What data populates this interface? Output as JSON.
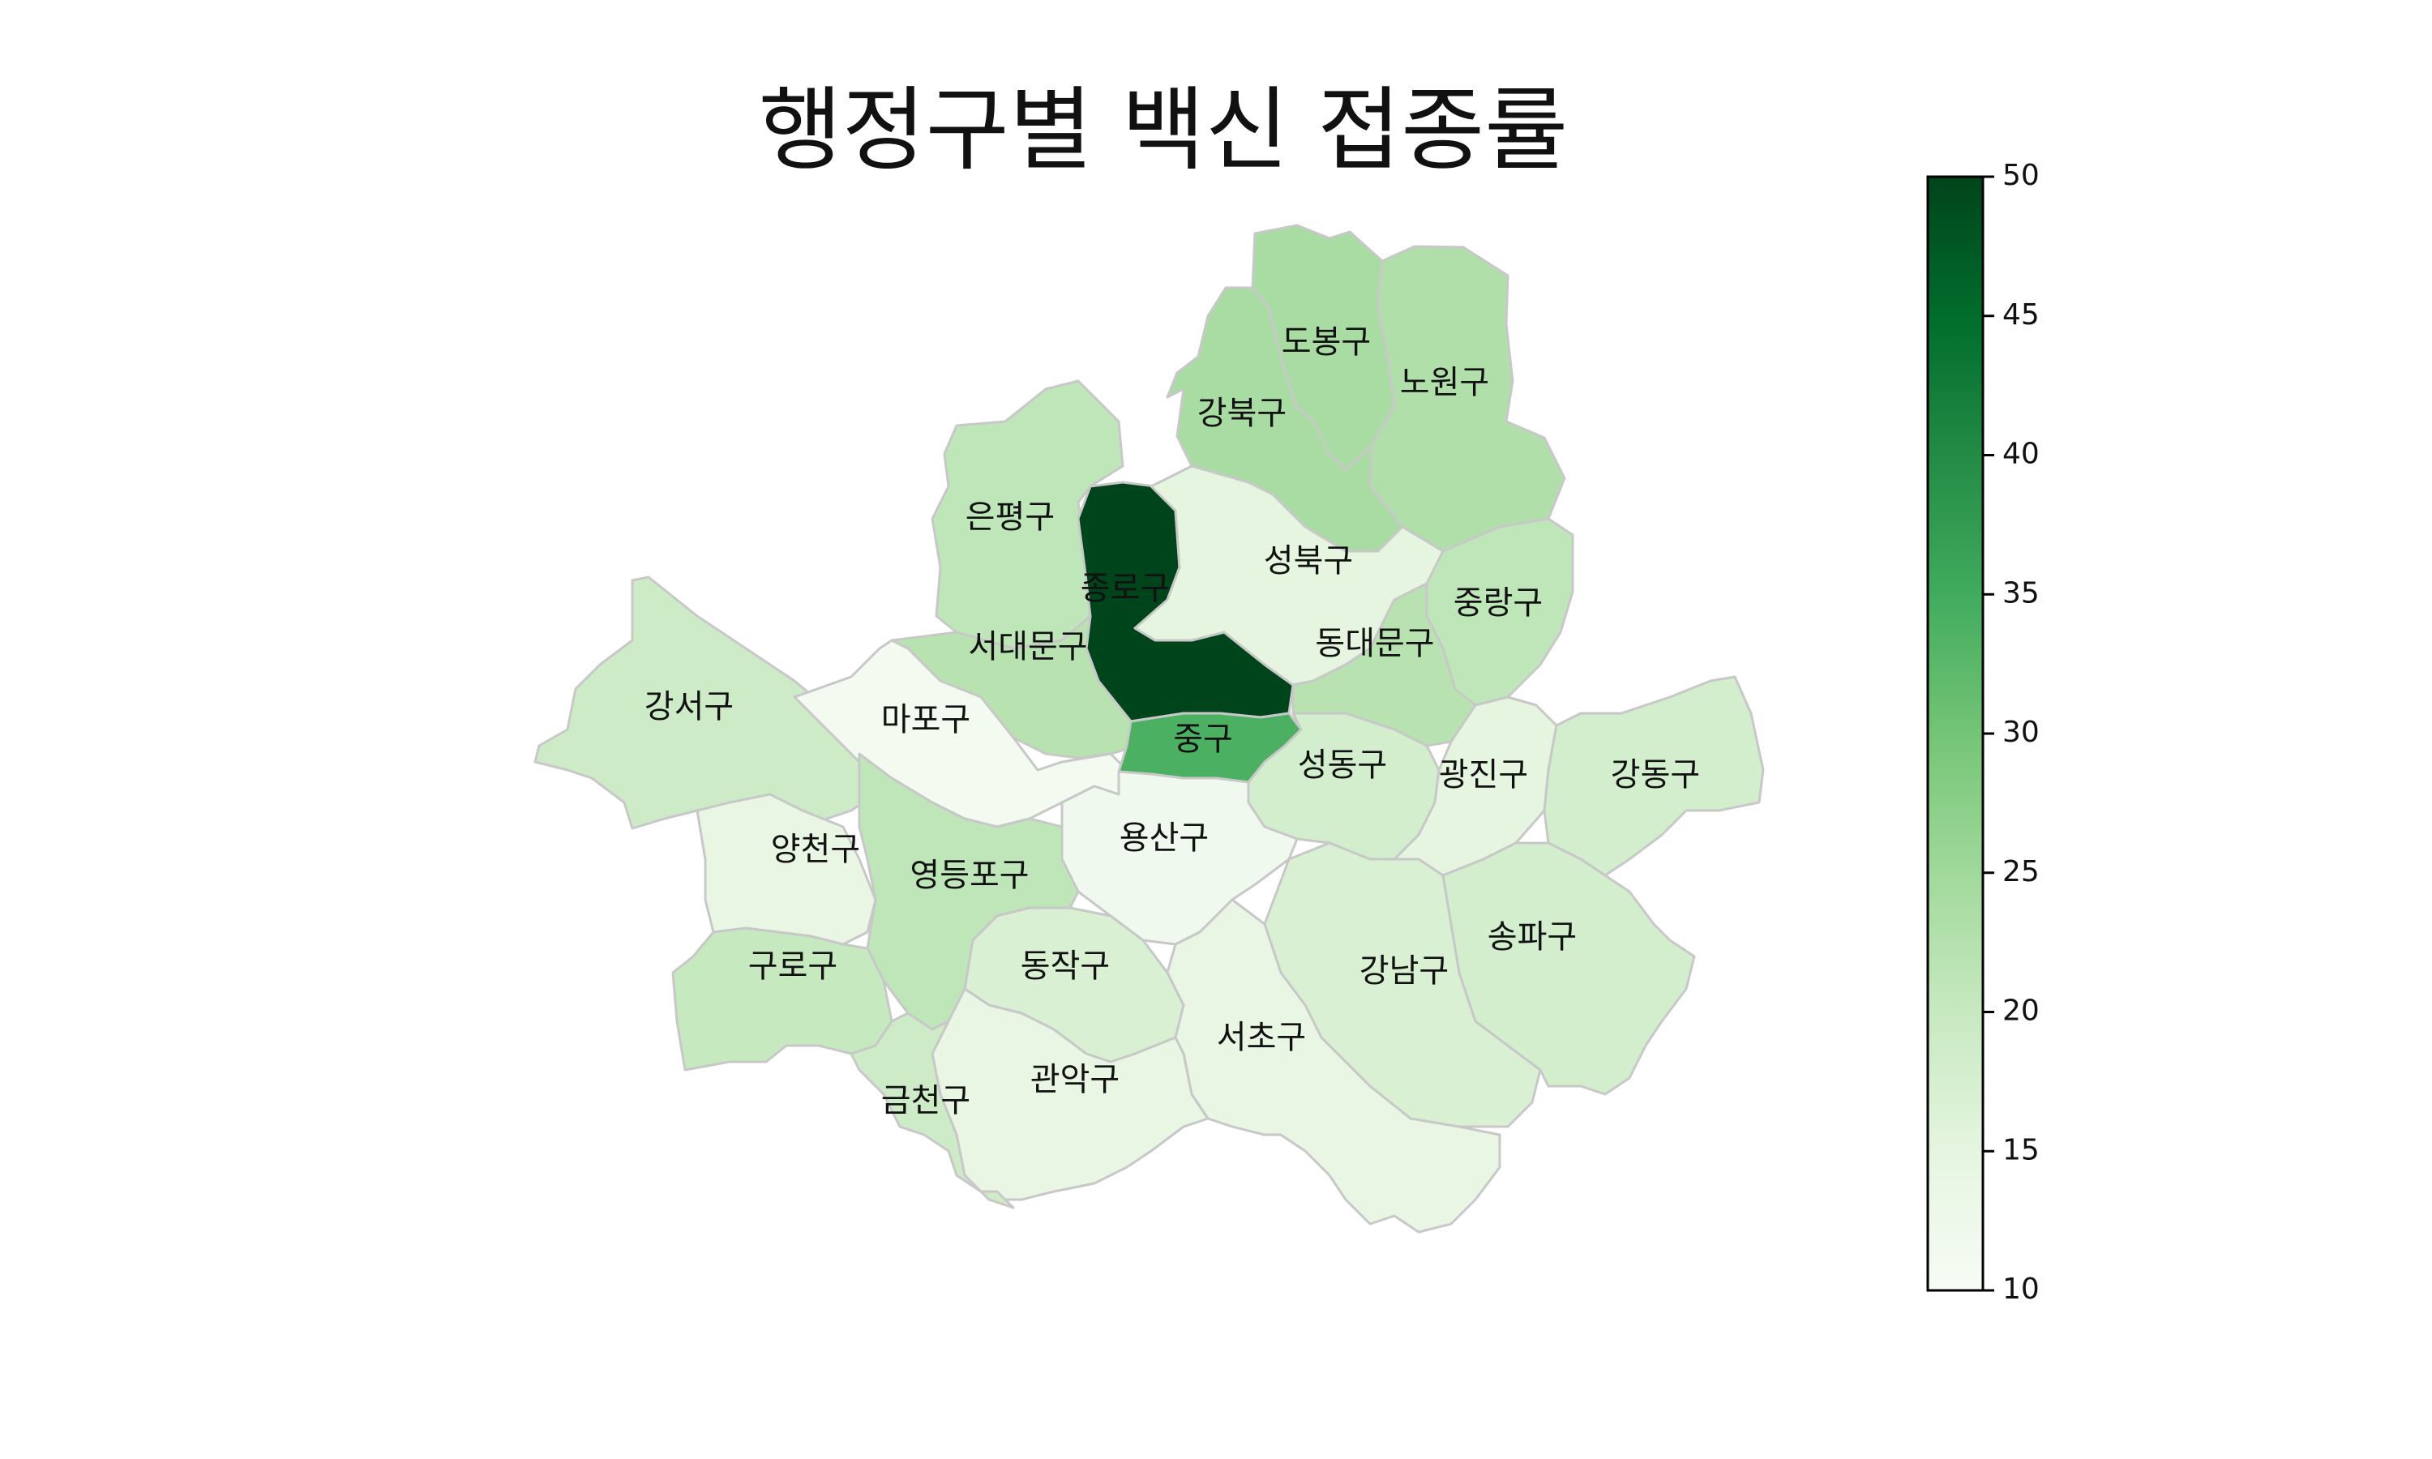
{
  "title": "행정구별 백신 접종률",
  "colormap": {
    "name": "Greens",
    "range": [
      10,
      50
    ],
    "stops": [
      [
        0.0,
        "#f7fcf5"
      ],
      [
        0.125,
        "#e5f5e0"
      ],
      [
        0.25,
        "#c7e9c0"
      ],
      [
        0.375,
        "#a1d99b"
      ],
      [
        0.5,
        "#74c476"
      ],
      [
        0.625,
        "#41ab5d"
      ],
      [
        0.75,
        "#238b45"
      ],
      [
        0.875,
        "#006d2c"
      ],
      [
        1.0,
        "#00441b"
      ]
    ]
  },
  "colorbar": {
    "min": 10,
    "max": 50,
    "ticks": [
      "10",
      "15",
      "20",
      "25",
      "30",
      "35",
      "40",
      "45",
      "50"
    ]
  },
  "districts": [
    {
      "id": "dobong",
      "name": "도봉구",
      "value": 24
    },
    {
      "id": "nowon",
      "name": "노원구",
      "value": 23
    },
    {
      "id": "gangbuk",
      "name": "강북구",
      "value": 24
    },
    {
      "id": "eunpyeong",
      "name": "은평구",
      "value": 21
    },
    {
      "id": "jongno",
      "name": "종로구",
      "value": 50
    },
    {
      "id": "seongbuk",
      "name": "성북구",
      "value": 15
    },
    {
      "id": "jungnang",
      "name": "중랑구",
      "value": 21
    },
    {
      "id": "seodaemun",
      "name": "서대문구",
      "value": 22
    },
    {
      "id": "dongdaemun",
      "name": "동대문구",
      "value": 22
    },
    {
      "id": "gangseo",
      "name": "강서구",
      "value": 19
    },
    {
      "id": "mapo",
      "name": "마포구",
      "value": 11
    },
    {
      "id": "junggu",
      "name": "중구",
      "value": 34
    },
    {
      "id": "seongdong",
      "name": "성동구",
      "value": 18
    },
    {
      "id": "gwangjin",
      "name": "광진구",
      "value": 15
    },
    {
      "id": "gangdong",
      "name": "강동구",
      "value": 18
    },
    {
      "id": "yangcheon",
      "name": "양천구",
      "value": 14
    },
    {
      "id": "yongsan",
      "name": "용산구",
      "value": 12
    },
    {
      "id": "yeongdeungpo",
      "name": "영등포구",
      "value": 21
    },
    {
      "id": "dongjak",
      "name": "동작구",
      "value": 17
    },
    {
      "id": "guro",
      "name": "구로구",
      "value": 20
    },
    {
      "id": "gangnam",
      "name": "강남구",
      "value": 17
    },
    {
      "id": "songpa",
      "name": "송파구",
      "value": 18
    },
    {
      "id": "seocho",
      "name": "서초구",
      "value": 14
    },
    {
      "id": "gwanak",
      "name": "관악구",
      "value": 14
    },
    {
      "id": "geumcheon",
      "name": "금천구",
      "value": 19
    }
  ]
}
